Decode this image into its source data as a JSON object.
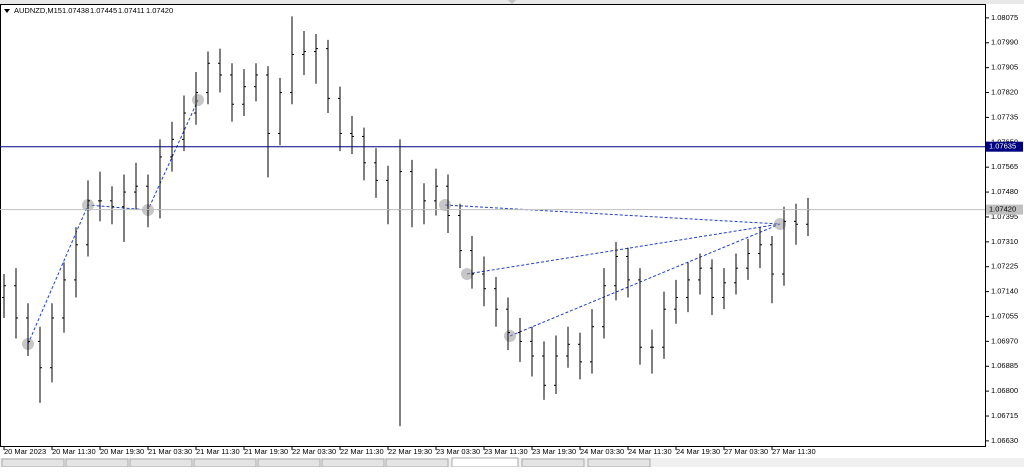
{
  "header": {
    "symbol": "AUDNZD,M15",
    "values": [
      "1.07438",
      "1.07445",
      "1.07411",
      "1.07420"
    ]
  },
  "chart_data": {
    "type": "ohlc",
    "categories": [
      "20 Mar 2023",
      null,
      null,
      null,
      "20 Mar 11:30",
      null,
      null,
      null,
      "20 Mar 19:30",
      null,
      null,
      null,
      "21 Mar 03:30",
      null,
      null,
      null,
      "21 Mar 11:30",
      null,
      null,
      null,
      "21 Mar 19:30",
      null,
      null,
      null,
      "22 Mar 03:30",
      null,
      null,
      null,
      "22 Mar 11:30",
      null,
      null,
      null,
      "22 Mar 19:30",
      null,
      null,
      null,
      "23 Mar 03:30",
      null,
      null,
      null,
      "23 Mar 11:30",
      null,
      null,
      null,
      "23 Mar 19:30",
      null,
      null,
      null,
      "24 Mar 03:30",
      null,
      null,
      null,
      "24 Mar 11:30",
      null,
      null,
      null,
      "24 Mar 19:30",
      null,
      null,
      null,
      "27 Mar 03:30",
      null,
      null,
      null,
      "27 Mar 11:30",
      null,
      null,
      null
    ],
    "open": [
      1.0712,
      1.0716,
      1.0705,
      1.0697,
      1.0688,
      1.0705,
      1.0718,
      1.073,
      1.0745,
      1.0745,
      1.0743,
      1.0748,
      1.075,
      1.0742,
      1.076,
      1.0766,
      1.0775,
      1.0782,
      1.0792,
      1.0788,
      1.0778,
      1.0784,
      1.0788,
      1.0768,
      1.0782,
      1.0795,
      1.0796,
      1.0797,
      1.078,
      1.0768,
      1.0767,
      1.0758,
      1.0752,
      1.0742,
      1.0755,
      1.0742,
      1.0745,
      1.075,
      1.074,
      1.0728,
      1.072,
      1.0715,
      1.0708,
      1.07,
      1.0697,
      1.0692,
      1.0682,
      1.0692,
      1.0696,
      1.069,
      1.0702,
      1.0716,
      1.0726,
      1.0718,
      1.0695,
      1.0695,
      1.0708,
      1.0712,
      1.0718,
      1.0722,
      1.0712,
      1.0717,
      1.0722,
      1.0727,
      1.073,
      1.072,
      1.0738,
      1.0737
    ],
    "high": [
      1.072,
      1.0722,
      1.071,
      1.0702,
      1.071,
      1.0724,
      1.0736,
      1.0752,
      1.0755,
      1.075,
      1.0754,
      1.0758,
      1.0754,
      1.0766,
      1.0772,
      1.0781,
      1.0789,
      1.0796,
      1.0797,
      1.0792,
      1.079,
      1.0792,
      1.0791,
      1.0787,
      1.0808,
      1.0803,
      1.0802,
      1.08,
      1.0784,
      1.0774,
      1.077,
      1.0763,
      1.0757,
      1.0766,
      1.0759,
      1.0751,
      1.0756,
      1.0754,
      1.0744,
      1.0733,
      1.0726,
      1.0719,
      1.0712,
      1.0705,
      1.0702,
      1.0697,
      1.0699,
      1.0702,
      1.07,
      1.0708,
      1.0722,
      1.0731,
      1.0729,
      1.0722,
      1.0701,
      1.0714,
      1.0718,
      1.0724,
      1.0727,
      1.0725,
      1.0722,
      1.0727,
      1.0732,
      1.0736,
      1.0733,
      1.0743,
      1.0744,
      1.0746
    ],
    "low": [
      1.0705,
      1.0698,
      1.0692,
      1.0676,
      1.0683,
      1.07,
      1.0712,
      1.0726,
      1.0738,
      1.0737,
      1.0731,
      1.0742,
      1.0736,
      1.0739,
      1.0755,
      1.0762,
      1.0771,
      1.0778,
      1.0782,
      1.0772,
      1.0774,
      1.0779,
      1.0753,
      1.0764,
      1.0778,
      1.0788,
      1.0785,
      1.0775,
      1.0762,
      1.0761,
      1.0752,
      1.0746,
      1.0737,
      1.0668,
      1.0736,
      1.0737,
      1.074,
      1.0734,
      1.0722,
      1.0715,
      1.0709,
      1.0702,
      1.0694,
      1.069,
      1.0685,
      1.0677,
      1.0679,
      1.0688,
      1.0684,
      1.0686,
      1.0698,
      1.0711,
      1.0712,
      1.0689,
      1.0686,
      1.0691,
      1.0703,
      1.0707,
      1.0713,
      1.0706,
      1.0708,
      1.0713,
      1.0718,
      1.0722,
      1.071,
      1.0716,
      1.073,
      1.0733
    ],
    "close": [
      1.0716,
      1.0705,
      1.0697,
      1.0688,
      1.0705,
      1.0718,
      1.073,
      1.0745,
      1.0745,
      1.0743,
      1.0748,
      1.075,
      1.0742,
      1.076,
      1.0766,
      1.0775,
      1.0782,
      1.0792,
      1.0788,
      1.0778,
      1.0784,
      1.0788,
      1.0768,
      1.0782,
      1.0795,
      1.0796,
      1.0797,
      1.078,
      1.0768,
      1.0767,
      1.0758,
      1.0752,
      1.0742,
      1.0755,
      1.0742,
      1.0745,
      1.075,
      1.074,
      1.0728,
      1.072,
      1.0715,
      1.0708,
      1.07,
      1.0697,
      1.0692,
      1.0682,
      1.0692,
      1.0696,
      1.069,
      1.0702,
      1.0716,
      1.0726,
      1.0718,
      1.0695,
      1.0695,
      1.0708,
      1.0712,
      1.0718,
      1.0722,
      1.0712,
      1.0717,
      1.0722,
      1.0727,
      1.073,
      1.072,
      1.0738,
      1.0737,
      1.0742
    ],
    "color": "#000000",
    "ylim": [
      1.06616,
      1.08119
    ],
    "yticks": [
      1.08075,
      {
        "value": 1.0799,
        "label": "1.07990"
      },
      1.07905,
      {
        "value": 1.0782,
        "label": "1.07820"
      },
      1.07735,
      {
        "value": 1.0765,
        "label": "1.07650"
      },
      1.07565,
      {
        "value": 1.0748,
        "label": "1.07480"
      },
      1.07395,
      {
        "value": 1.0731,
        "label": "1.07310"
      },
      1.07225,
      {
        "value": 1.0714,
        "label": "1.07140"
      },
      1.07055,
      {
        "value": 1.0697,
        "label": "1.06970"
      },
      1.06885,
      {
        "value": 1.068,
        "label": "1.06800"
      },
      1.06715,
      {
        "value": 1.0663,
        "label": "1.06630"
      }
    ],
    "price_lines": [
      {
        "value": 1.07635,
        "color": "#000080"
      },
      {
        "value": 1.0742,
        "label": "1.07420",
        "color": "#c0c0c0"
      }
    ]
  }
}
